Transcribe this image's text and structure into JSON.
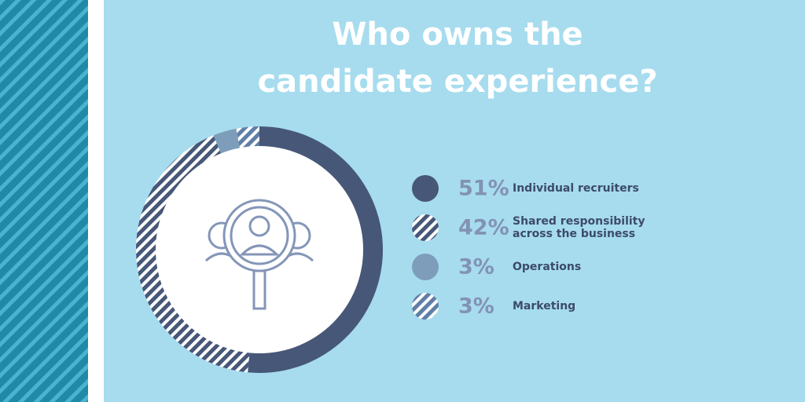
{
  "chart_data": {
    "type": "donut",
    "title_lines": [
      "Who owns the",
      "candidate experience?"
    ],
    "categories": [
      "Individual recruiters",
      "Shared responsibility across the business",
      "Operations",
      "Marketing"
    ],
    "values": [
      51,
      42,
      3,
      3
    ],
    "value_labels": [
      "51%",
      "42%",
      "3%",
      "3%"
    ],
    "colors": [
      "#475778",
      "#475778",
      "#7d9dbb",
      "#5f7fa8"
    ],
    "hatched": [
      false,
      true,
      false,
      true
    ]
  }
}
